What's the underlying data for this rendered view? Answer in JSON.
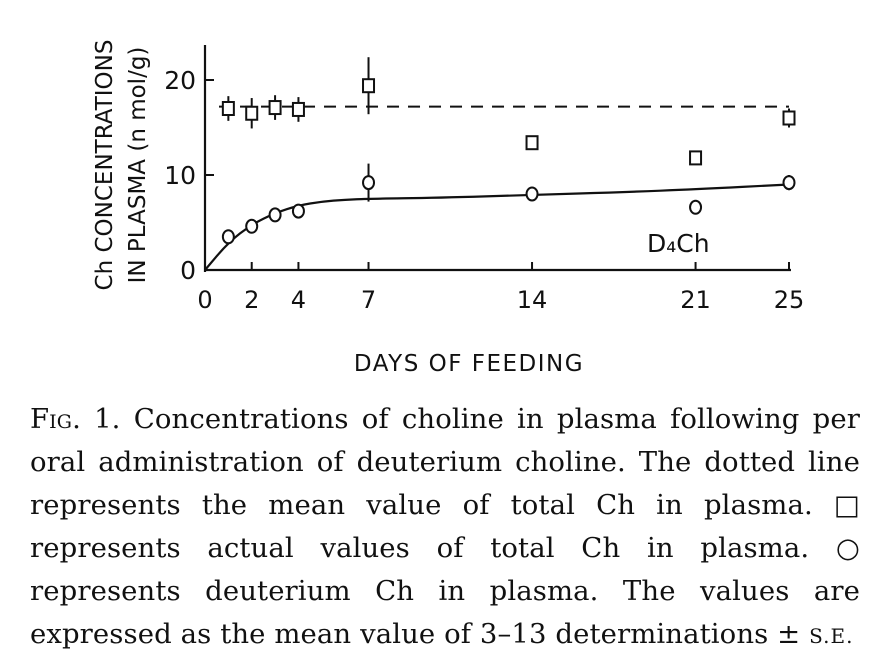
{
  "figure": {
    "caption_label": "Fig. 1.",
    "caption_text": " Concentrations of choline in plasma following per oral administration of deuterium choline. The dotted line represents the mean value of total Ch in plasma. □ represents actual values of total Ch in plasma. ○ represents deuterium Ch in plasma. The values are expressed as the mean value of 3–13 determinations ±",
    "caption_se": "S.E."
  },
  "chart_data": {
    "type": "scatter",
    "title": "",
    "xlabel": "DAYS OF FEEDING",
    "ylabel_line1": "Ch CONCENTRATIONS",
    "ylabel_line2": "IN PLASMA (n mol/g)",
    "xlim": [
      0,
      25
    ],
    "ylim": [
      0,
      24
    ],
    "x_ticks": [
      0,
      2,
      4,
      7,
      14,
      21,
      25
    ],
    "y_ticks": [
      0,
      10,
      20
    ],
    "series": [
      {
        "marker": "square",
        "points": [
          {
            "x": 1,
            "y": 17.0,
            "err": 1.3
          },
          {
            "x": 2,
            "y": 16.5,
            "err": 1.6
          },
          {
            "x": 3,
            "y": 17.1,
            "err": 1.3
          },
          {
            "x": 4,
            "y": 16.9,
            "err": 1.3
          },
          {
            "x": 7,
            "y": 19.4,
            "err": 3.0
          },
          {
            "x": 14,
            "y": 13.4,
            "err": 0.6
          },
          {
            "x": 21,
            "y": 11.8,
            "err": 0.6
          },
          {
            "x": 25,
            "y": 16.0,
            "err": 1.0
          }
        ]
      },
      {
        "name": "D₄Ch",
        "marker": "circle",
        "points": [
          {
            "x": 1,
            "y": 3.5,
            "err": 0.6
          },
          {
            "x": 2,
            "y": 4.6,
            "err": 0.6
          },
          {
            "x": 3,
            "y": 5.8,
            "err": 0.6
          },
          {
            "x": 4,
            "y": 6.2,
            "err": 0.6
          },
          {
            "x": 7,
            "y": 9.2,
            "err": 2.0
          },
          {
            "x": 14,
            "y": 8.0,
            "err": 0.5
          },
          {
            "x": 21,
            "y": 6.6,
            "err": 0.4
          },
          {
            "x": 25,
            "y": 9.2,
            "err": 0.8
          }
        ]
      }
    ],
    "mean_line": {
      "style": "dashed",
      "y": 17.2
    },
    "fit_curve": {
      "style": "solid",
      "points": [
        [
          0,
          0
        ],
        [
          1,
          2.9
        ],
        [
          2,
          4.8
        ],
        [
          3,
          6.0
        ],
        [
          4,
          6.8
        ],
        [
          5,
          7.2
        ],
        [
          6,
          7.4
        ],
        [
          7,
          7.5
        ],
        [
          10,
          7.6
        ],
        [
          14,
          7.9
        ],
        [
          18,
          8.2
        ],
        [
          21,
          8.5
        ],
        [
          25,
          9.0
        ]
      ]
    },
    "series_label": "D₄Ch",
    "grid": false,
    "legend": "none"
  }
}
